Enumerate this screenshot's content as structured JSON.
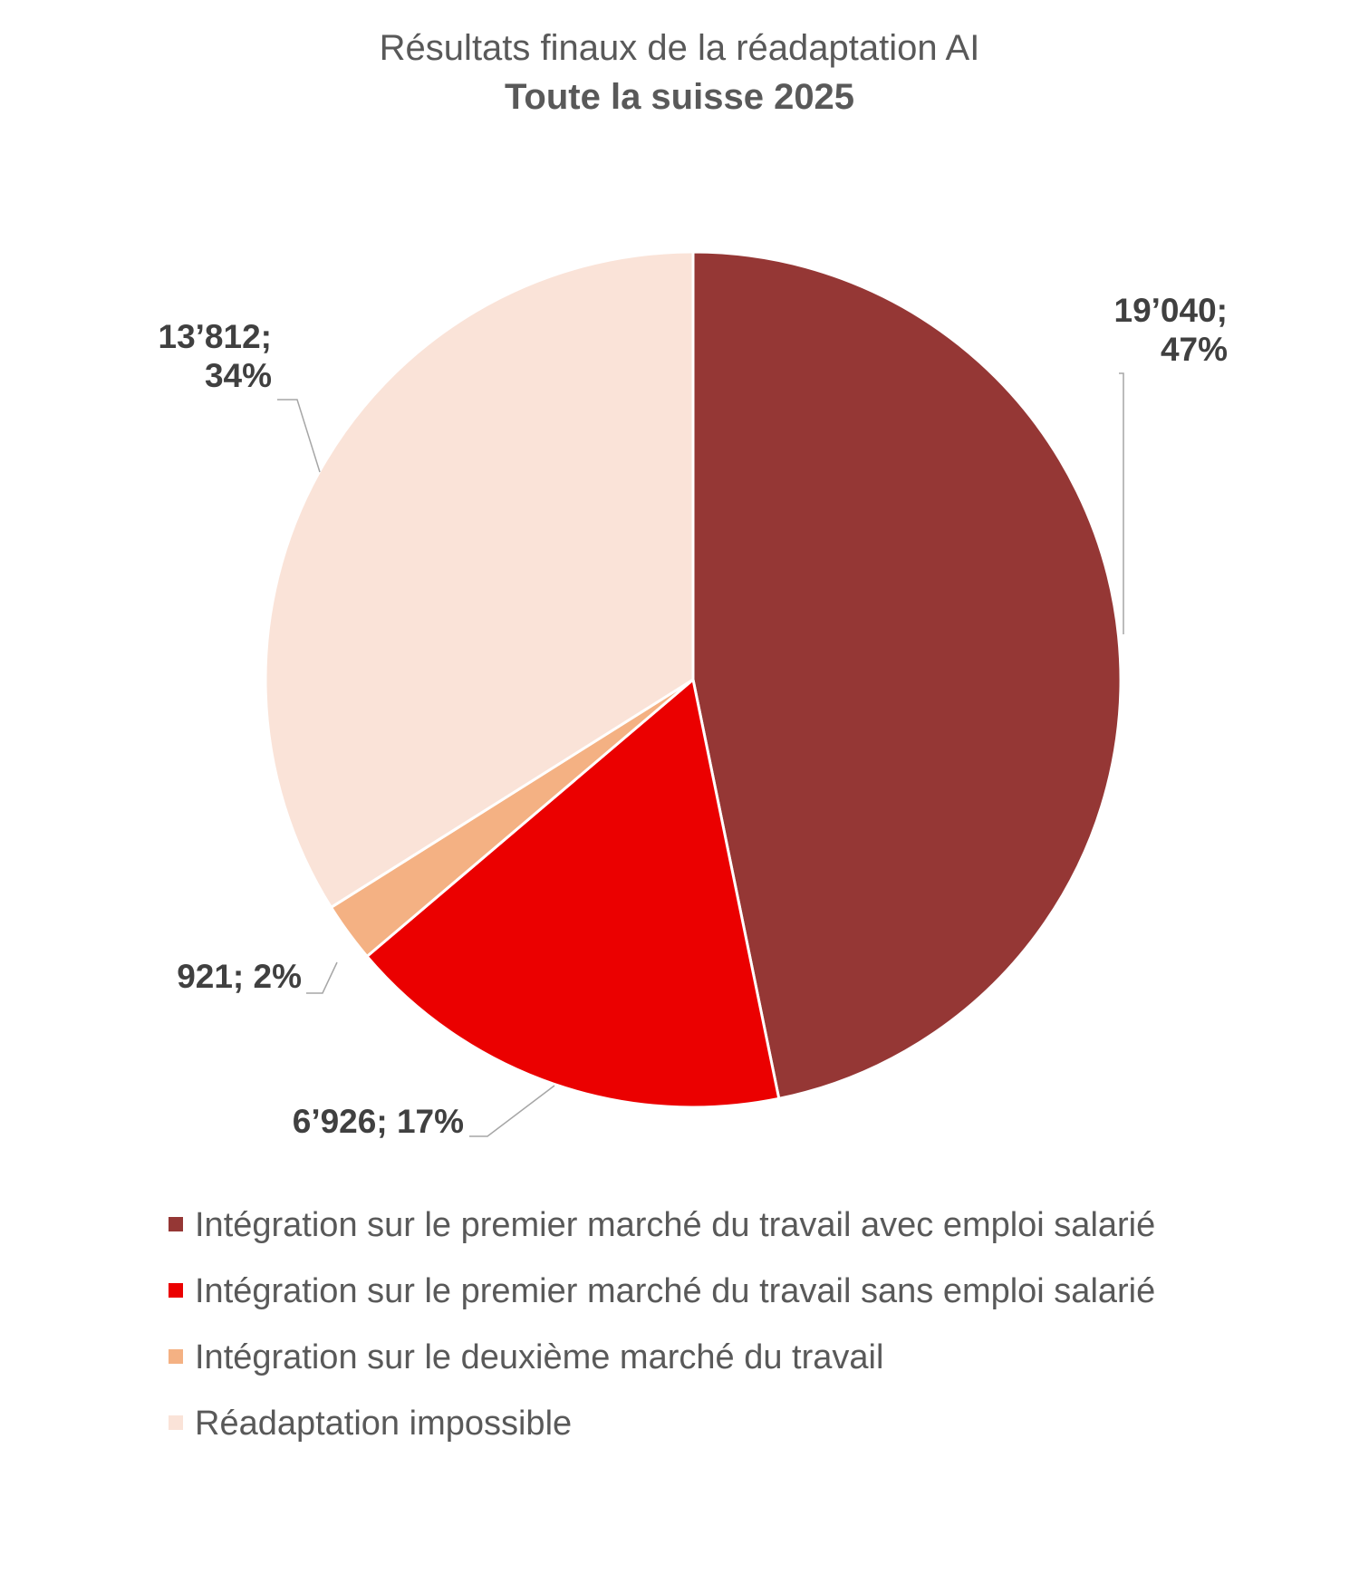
{
  "chart_data": {
    "type": "pie",
    "title": "Résultats finaux de la réadaptation AI",
    "subtitle": "Toute la suisse 2025",
    "series": [
      {
        "name": "Intégration sur le premier marché du travail avec emploi salarié",
        "value": 19040,
        "percent": 47,
        "label_lines": [
          "19’040;",
          "47%"
        ],
        "color": "#953735"
      },
      {
        "name": "Intégration sur le premier marché du travail sans emploi salarié",
        "value": 6926,
        "percent": 17,
        "label_lines": [
          "6’926; 17%"
        ],
        "color": "#EB0000"
      },
      {
        "name": "Intégration sur le deuxième marché du travail",
        "value": 921,
        "percent": 2,
        "label_lines": [
          "921; 2%"
        ],
        "color": "#F4B183"
      },
      {
        "name": "Réadaptation impossible",
        "value": 13812,
        "percent": 34,
        "label_lines": [
          "13’812;",
          "34%"
        ],
        "color": "#FAE3D8"
      }
    ],
    "start_angle_deg": 0,
    "direction": "clockwise",
    "legend_position": "bottom"
  }
}
